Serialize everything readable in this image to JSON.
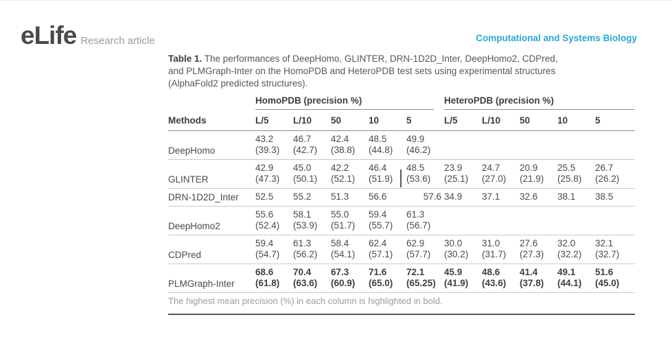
{
  "brand": {
    "logo": "eLife",
    "article_type": "Research article",
    "category": "Computational and Systems Biology"
  },
  "colors": {
    "accent": "#29a7d7",
    "text": "#4a4a4a",
    "muted": "#9b9b9b",
    "rule_light": "#c9c9c9",
    "rule_dark": "#565656"
  },
  "caption": {
    "label": "Table 1.",
    "line1": "The performances of DeepHomo, GLINTER, DRN-1D2D_Inter, DeepHomo2, CDPred,",
    "line2": "and PLMGraph-Inter on the HomoPDB and HeteroPDB test sets using experimental structures",
    "line3": "(AlphaFold2 predicted structures)."
  },
  "table": {
    "methods_header": "Methods",
    "groups": [
      {
        "label": "HomoPDB (precision %)"
      },
      {
        "label": "HeteroPDB (precision %)"
      }
    ],
    "columns": [
      "L/5",
      "L/10",
      "50",
      "10",
      "5",
      "L/5",
      "L/10",
      "50",
      "10",
      "5"
    ],
    "rows": [
      {
        "method": "DeepHomo",
        "bold": false,
        "cells": [
          {
            "v": "43.2",
            "p": "(39.3)"
          },
          {
            "v": "46.7",
            "p": "(42.7)"
          },
          {
            "v": "42.4",
            "p": "(38.8)"
          },
          {
            "v": "48.5",
            "p": "(44.8)"
          },
          {
            "v": "49.9",
            "p": "(46.2)"
          },
          {
            "v": "",
            "p": ""
          },
          {
            "v": "",
            "p": ""
          },
          {
            "v": "",
            "p": ""
          },
          {
            "v": "",
            "p": ""
          },
          {
            "v": "",
            "p": ""
          }
        ]
      },
      {
        "method": "GLINTER",
        "bold": false,
        "cells": [
          {
            "v": "42.9",
            "p": "(47.3)"
          },
          {
            "v": "45.0",
            "p": "(50.1)"
          },
          {
            "v": "42.2",
            "p": "(52.1)"
          },
          {
            "v": "46.4",
            "p": "(51.9)"
          },
          {
            "v": "48.5",
            "p": "(53.6)"
          },
          {
            "v": "23.9",
            "p": "(25.1)"
          },
          {
            "v": "24.7",
            "p": "(27.0)"
          },
          {
            "v": "20.9",
            "p": "(21.9)"
          },
          {
            "v": "25.5",
            "p": "(25.8)"
          },
          {
            "v": "26.7",
            "p": "(26.2)"
          }
        ]
      },
      {
        "method": "DRN-1D2D_Inter",
        "bold": false,
        "cells": [
          {
            "v": "52.5",
            "p": ""
          },
          {
            "v": "55.2",
            "p": ""
          },
          {
            "v": "51.3",
            "p": ""
          },
          {
            "v": "56.6",
            "p": ""
          },
          {
            "v": "57.6",
            "p": "",
            "align": "right"
          },
          {
            "v": "34.9",
            "p": ""
          },
          {
            "v": "37.1",
            "p": ""
          },
          {
            "v": "32.6",
            "p": ""
          },
          {
            "v": "38.1",
            "p": ""
          },
          {
            "v": "38.5",
            "p": ""
          }
        ]
      },
      {
        "method": "DeepHomo2",
        "bold": false,
        "cells": [
          {
            "v": "55.6",
            "p": "(52.4)"
          },
          {
            "v": "58.1",
            "p": "(53.9)"
          },
          {
            "v": "55.0",
            "p": "(51.7)"
          },
          {
            "v": "59.4",
            "p": "(55.7)"
          },
          {
            "v": "61.3",
            "p": "(56.7)"
          },
          {
            "v": "",
            "p": ""
          },
          {
            "v": "",
            "p": ""
          },
          {
            "v": "",
            "p": ""
          },
          {
            "v": "",
            "p": ""
          },
          {
            "v": "",
            "p": ""
          }
        ]
      },
      {
        "method": "CDPred",
        "bold": false,
        "cells": [
          {
            "v": "59.4",
            "p": "(54.7)"
          },
          {
            "v": "61.3",
            "p": "(56.2)"
          },
          {
            "v": "58.4",
            "p": "(54.1)"
          },
          {
            "v": "62.4",
            "p": "(57.1)"
          },
          {
            "v": "62.9",
            "p": "(57.7)"
          },
          {
            "v": "30.0",
            "p": "(30.2)"
          },
          {
            "v": "31.0",
            "p": "(31.7)"
          },
          {
            "v": "27.6",
            "p": "(27.3)"
          },
          {
            "v": "32.0",
            "p": "(32.2)"
          },
          {
            "v": "32.1",
            "p": "(32.7)"
          }
        ]
      },
      {
        "method": "PLMGraph-Inter",
        "bold": true,
        "cells": [
          {
            "v": "68.6",
            "p": "(61.8)"
          },
          {
            "v": "70.4",
            "p": "(63.6)"
          },
          {
            "v": "67.3",
            "p": "(60.9)"
          },
          {
            "v": "71.6",
            "p": "(65.0)"
          },
          {
            "v": "72.1",
            "p": "(65.25)"
          },
          {
            "v": "45.9",
            "p": "(41.9)"
          },
          {
            "v": "48.6",
            "p": "(43.6)"
          },
          {
            "v": "41.4",
            "p": "(37.8)"
          },
          {
            "v": "49.1",
            "p": "(44.1)"
          },
          {
            "v": "51.6",
            "p": "(45.0)"
          }
        ]
      }
    ]
  },
  "footnote": "The highest mean precision (%) in each column is highlighted in bold."
}
